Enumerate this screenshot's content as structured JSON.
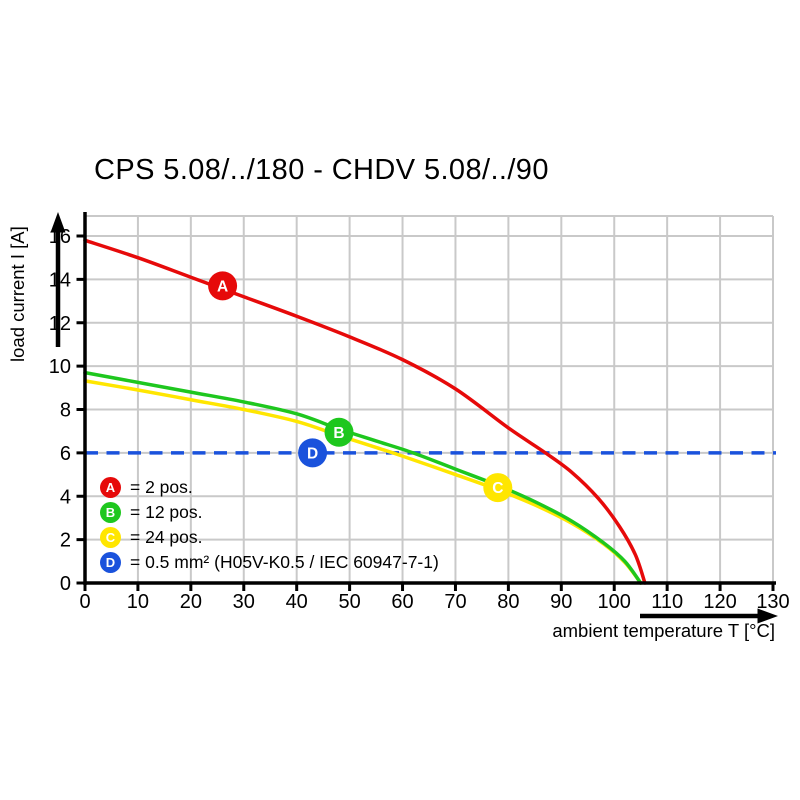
{
  "title": "CPS 5.08/../180 - CHDV 5.08/../90",
  "y_axis": {
    "label": "load current I [A]"
  },
  "x_axis": {
    "label": "ambient temperature T [°C]"
  },
  "colors": {
    "red": "#e60a0a",
    "green": "#1ec71e",
    "yellow": "#ffe600",
    "blue": "#1a52dc",
    "grid": "#c9c9c9",
    "axis": "#000000"
  },
  "chart_data": {
    "type": "line",
    "title": "CPS 5.08/../180 - CHDV 5.08/../90",
    "xlabel": "ambient temperature T [°C]",
    "ylabel": "load current I [A]",
    "xlim": [
      0,
      130
    ],
    "ylim": [
      0,
      16.9
    ],
    "x_ticks": [
      0,
      10,
      20,
      30,
      40,
      50,
      60,
      70,
      80,
      90,
      100,
      110,
      120,
      130
    ],
    "y_ticks": [
      0,
      2,
      4,
      6,
      8,
      10,
      12,
      14,
      16
    ],
    "grid": true,
    "legend_position": "lower-left",
    "series": [
      {
        "name": "A",
        "legend": "= 2 pos.",
        "color": "#e60a0a",
        "type": "curve",
        "points": [
          [
            0,
            15.8
          ],
          [
            10,
            15.0
          ],
          [
            20,
            14.1
          ],
          [
            30,
            13.2
          ],
          [
            40,
            12.3
          ],
          [
            50,
            11.35
          ],
          [
            60,
            10.3
          ],
          [
            70,
            8.95
          ],
          [
            80,
            7.15
          ],
          [
            87,
            6.0
          ],
          [
            92,
            5.1
          ],
          [
            97,
            3.9
          ],
          [
            101,
            2.6
          ],
          [
            104,
            1.3
          ],
          [
            105.8,
            0
          ]
        ],
        "marker": {
          "letter": "A",
          "x": 26,
          "y": 13.7
        }
      },
      {
        "name": "B",
        "legend": "= 12 pos.",
        "color": "#1ec71e",
        "type": "curve",
        "points": [
          [
            0,
            9.7
          ],
          [
            10,
            9.25
          ],
          [
            20,
            8.8
          ],
          [
            30,
            8.35
          ],
          [
            40,
            7.8
          ],
          [
            48,
            7.1
          ],
          [
            55,
            6.55
          ],
          [
            62,
            6.0
          ],
          [
            70,
            5.25
          ],
          [
            78,
            4.5
          ],
          [
            85,
            3.75
          ],
          [
            92,
            2.85
          ],
          [
            98,
            1.85
          ],
          [
            102,
            1.0
          ],
          [
            105,
            0
          ]
        ],
        "marker": {
          "letter": "B",
          "x": 48,
          "y": 6.95
        }
      },
      {
        "name": "C",
        "legend": "= 24 pos.",
        "color": "#ffe600",
        "type": "curve",
        "points": [
          [
            0,
            9.32
          ],
          [
            10,
            8.9
          ],
          [
            20,
            8.45
          ],
          [
            30,
            8.0
          ],
          [
            40,
            7.45
          ],
          [
            48,
            6.8
          ],
          [
            55,
            6.25
          ],
          [
            60,
            5.85
          ],
          [
            70,
            5.0
          ],
          [
            78,
            4.3
          ],
          [
            85,
            3.6
          ],
          [
            92,
            2.75
          ],
          [
            98,
            1.8
          ],
          [
            102,
            0.95
          ],
          [
            105,
            0
          ]
        ],
        "marker": {
          "letter": "C",
          "x": 78,
          "y": 4.4
        }
      },
      {
        "name": "D",
        "legend": "= 0.5 mm² (H05V-K0.5 / IEC 60947-7-1)",
        "color": "#1a52dc",
        "type": "hline",
        "y": 6,
        "dashed": true,
        "marker": {
          "letter": "D",
          "x": 43,
          "y": 6
        }
      }
    ]
  }
}
